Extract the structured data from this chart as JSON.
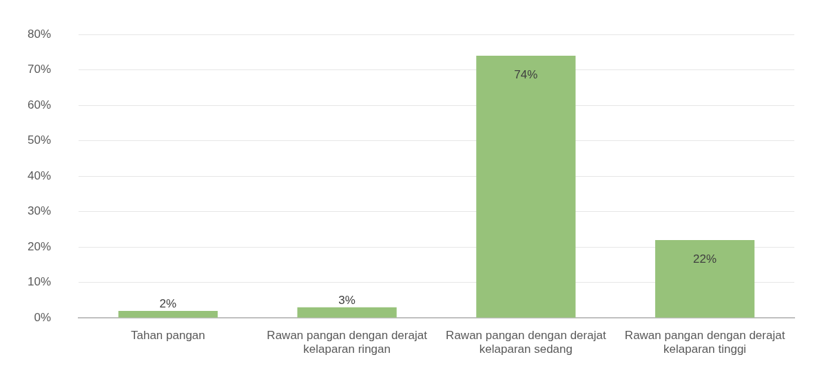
{
  "chart_data": {
    "type": "bar",
    "categories": [
      "Tahan pangan",
      "Rawan pangan dengan derajat kelaparan ringan",
      "Rawan pangan dengan derajat kelaparan sedang",
      "Rawan pangan dengan derajat kelaparan tinggi"
    ],
    "values": [
      2,
      3,
      74,
      22
    ],
    "color": "#97c27a",
    "value_labels": [
      "2%",
      "3%",
      "74%",
      "22%"
    ],
    "ylim": [
      0,
      80
    ],
    "yticks": [
      {
        "value": 0,
        "label": "0%"
      },
      {
        "value": 10,
        "label": "10%"
      },
      {
        "value": 20,
        "label": "20%"
      },
      {
        "value": 30,
        "label": "30%"
      },
      {
        "value": 40,
        "label": "40%"
      },
      {
        "value": 50,
        "label": "50%"
      },
      {
        "value": 60,
        "label": "60%"
      },
      {
        "value": 70,
        "label": "70%"
      },
      {
        "value": 80,
        "label": "80%"
      }
    ],
    "grid": "y",
    "legend": false
  }
}
